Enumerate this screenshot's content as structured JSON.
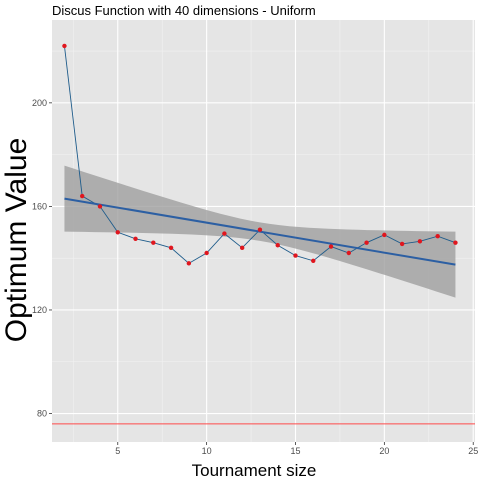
{
  "chart_data": {
    "type": "scatter",
    "title": "Discus Function with 40 dimensions -  Uniform",
    "xlabel": "Tournament size",
    "ylabel": "Optimum Value",
    "xlim": [
      1.3,
      25.1
    ],
    "ylim": [
      69,
      232
    ],
    "x_ticks": [
      5,
      10,
      15,
      20,
      25
    ],
    "y_ticks": [
      80,
      120,
      160,
      200
    ],
    "grid": true,
    "legend": "none",
    "series": [
      {
        "kind": "points-connected",
        "x": [
          2,
          3,
          4,
          5,
          6,
          7,
          8,
          9,
          10,
          11,
          12,
          13,
          14,
          15,
          16,
          17,
          18,
          19,
          20,
          21,
          22,
          23,
          24
        ],
        "y": [
          222,
          164,
          160,
          150,
          147.5,
          146,
          144,
          138,
          142,
          149.5,
          144,
          151,
          145,
          141,
          139,
          144.5,
          142,
          146,
          149,
          145.5,
          146.5,
          148.5,
          146
        ]
      },
      {
        "kind": "linear-fit",
        "x": [
          2,
          24
        ],
        "y": [
          163,
          137.5
        ],
        "ci_lower": [
          150,
          125
        ],
        "ci_upper": [
          176,
          150.5
        ]
      },
      {
        "kind": "reference-line",
        "y": 76
      }
    ],
    "colors": {
      "panel": "#e5e5e5",
      "grid_major": "#ffffff",
      "connect_line": "#1f5c8b",
      "points": "#e0161e",
      "fit_line": "#2c5fa3",
      "ci_band": "#999999",
      "reference_line": "#ff4a4a"
    }
  }
}
